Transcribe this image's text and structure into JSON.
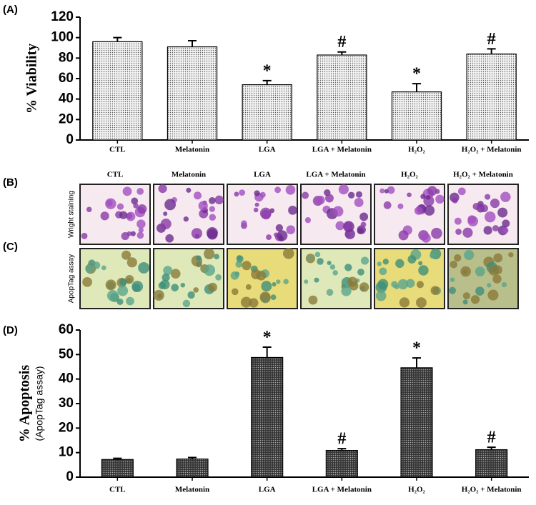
{
  "chart_data": [
    {
      "type": "bar",
      "panel_label": "(A)",
      "y_label": "% Viability",
      "categories": [
        "CTL",
        "Melatonin",
        "LGA",
        "LGA + Melatonin",
        "H₂O₂",
        "H₂O₂ + Melatonin"
      ],
      "values": [
        96,
        91,
        54,
        83,
        47,
        84
      ],
      "errors": [
        4,
        6,
        4,
        3,
        8,
        5
      ],
      "annotations": [
        null,
        null,
        "*",
        "#",
        "*",
        "#"
      ],
      "ylim": [
        0,
        120
      ],
      "yticks": [
        0,
        20,
        40,
        60,
        80,
        100,
        120
      ],
      "pattern": "light"
    },
    {
      "type": "bar",
      "panel_label": "(D)",
      "y_label": "% Apoptosis",
      "y_sublabel": "(ApopTag assay)",
      "categories": [
        "CTL",
        "Melatonin",
        "LGA",
        "LGA + Melatonin",
        "H₂O₂",
        "H₂O₂ + Melatonin"
      ],
      "values": [
        7.2,
        7.4,
        48.8,
        10.9,
        44.6,
        11.2
      ],
      "errors": [
        0.5,
        0.6,
        4.2,
        0.7,
        4,
        1
      ],
      "annotations": [
        null,
        null,
        "*",
        "#",
        "*",
        "#"
      ],
      "ylim": [
        0,
        60
      ],
      "yticks": [
        0,
        10,
        20,
        30,
        40,
        50,
        60
      ],
      "pattern": "dark"
    }
  ],
  "panels": {
    "columns": [
      "CTL",
      "Melatonin",
      "LGA",
      "LGA + Melatonin",
      "H₂O₂",
      "H₂O₂ + Melatonin"
    ],
    "rows": [
      {
        "panel_label": "(B)",
        "label": "Wright staining"
      },
      {
        "panel_label": "(C)",
        "label": "ApopTag assay"
      }
    ]
  }
}
